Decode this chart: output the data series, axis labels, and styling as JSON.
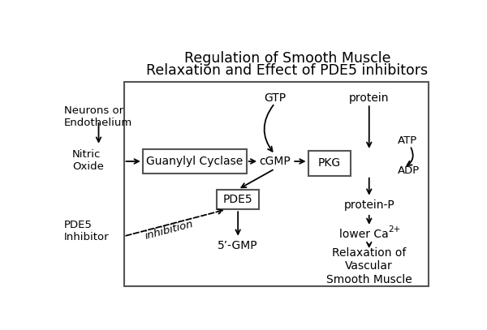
{
  "title_line1": "Regulation of Smooth Muscle",
  "title_line2": "Relaxation and Effect of PDE5 inhibitors",
  "title_fontsize": 12.5,
  "bg_color": "#ffffff",
  "text_color": "#000000",
  "labels": {
    "neurons": "Neurons or\nEndothelium",
    "nitric_oxide": "Nitric\nOxide",
    "guanylyl": "Guanylyl Cyclase",
    "gtp": "GTP",
    "cgmp": "cGMP",
    "pkg": "PKG",
    "pde5": "PDE5",
    "five_gmp": "5’-GMP",
    "inhibition": "inhibition",
    "pde5_inhibitor": "PDE5\nInhibitor",
    "protein": "protein",
    "atp": "ATP",
    "adp": "ADP",
    "protein_p": "protein-P",
    "lower_ca": "lower Ca",
    "ca_sup": "2+",
    "relaxation": "Relaxation of\nVascular\nSmooth Muscle"
  },
  "fontsize": 10,
  "small_fontsize": 9.5
}
